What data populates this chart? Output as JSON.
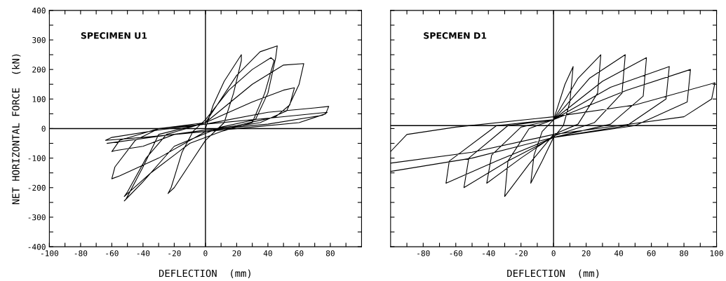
{
  "chart_data": [
    {
      "type": "line",
      "xlabel": "DEFLECTION  (mm)",
      "ylabel": "NET HORIZONTAL FORCE  (kN)",
      "annotations": [
        "SPECIMEN U1"
      ],
      "xlim": [
        -100,
        100
      ],
      "ylim": [
        -400,
        400
      ],
      "xticks": [
        -100,
        {
          "value": -90,
          "label": null
        },
        -80,
        {
          "value": -70,
          "label": null
        },
        -60,
        {
          "value": -50,
          "label": null
        },
        -40,
        {
          "value": -30,
          "label": null
        },
        -20,
        {
          "value": -10,
          "label": null
        },
        0,
        {
          "value": 10,
          "label": null
        },
        20,
        {
          "value": 30,
          "label": null
        },
        40,
        {
          "value": 50,
          "label": null
        },
        60,
        {
          "value": 70,
          "label": null
        },
        80,
        {
          "value": 90,
          "label": null
        }
      ],
      "yticks": [
        -400,
        {
          "value": -350,
          "label": null
        },
        -300,
        {
          "value": -250,
          "label": null
        },
        -200,
        {
          "value": -150,
          "label": null
        },
        -100,
        {
          "value": -50,
          "label": null
        },
        0,
        {
          "value": 50,
          "label": null
        },
        100,
        {
          "value": 150,
          "label": null
        },
        200,
        {
          "value": 250,
          "label": null
        },
        300,
        {
          "value": 350,
          "label": null
        },
        400
      ],
      "ref_lines": [
        {
          "axis": "y",
          "value": 0,
          "color": "#000000"
        },
        {
          "axis": "x",
          "value": 0,
          "color": "#000000"
        }
      ],
      "grid": false,
      "marker": "none",
      "line_style": "solid",
      "series": [
        {
          "color": "#000000",
          "x": [
            0,
            5,
            12,
            23,
            23,
            18,
            12,
            0,
            -10,
            -20,
            -24,
            -22,
            -15,
            -8,
            0,
            15,
            30,
            42,
            44,
            38,
            30,
            10,
            -10,
            -35,
            -52,
            -50,
            -38,
            -25,
            0,
            20,
            35,
            46,
            45,
            40,
            32,
            10,
            -20,
            -40,
            -52,
            -51,
            -40,
            -30,
            0,
            30,
            50,
            63,
            60,
            52,
            35,
            0,
            -30,
            -55,
            -60,
            -58,
            -45,
            -30,
            0,
            30,
            50,
            57,
            54,
            45,
            20,
            -20,
            -40,
            -58,
            -60,
            -55,
            -30,
            0,
            40,
            70,
            79,
            77,
            60,
            30,
            0,
            -40,
            -64,
            -60,
            -30,
            0,
            40,
            78,
            75,
            40,
            0,
            -63
          ],
          "values": [
            0,
            80,
            160,
            250,
            230,
            120,
            20,
            -40,
            -120,
            -200,
            -220,
            -200,
            -80,
            -10,
            30,
            130,
            200,
            240,
            230,
            120,
            20,
            -10,
            -50,
            -150,
            -230,
            -215,
            -100,
            -20,
            20,
            180,
            260,
            280,
            240,
            120,
            30,
            5,
            -60,
            -180,
            -245,
            -240,
            -130,
            -20,
            20,
            150,
            215,
            220,
            150,
            60,
            20,
            -10,
            -100,
            -160,
            -170,
            -130,
            -40,
            0,
            20,
            90,
            130,
            138,
            80,
            40,
            10,
            -20,
            -60,
            -75,
            -78,
            -40,
            0,
            15,
            55,
            70,
            75,
            50,
            20,
            5,
            -10,
            -30,
            -40,
            -30,
            -5,
            15,
            35,
            55,
            45,
            15,
            -5,
            -50
          ]
        }
      ]
    },
    {
      "type": "line",
      "xlabel": "DEFLECTION  (mm)",
      "annotations": [
        "SPECMEN D1"
      ],
      "tick_labels": "x",
      "xlim": [
        -100,
        100
      ],
      "ylim": [
        -400,
        400
      ],
      "xticks": [
        {
          "value": -90,
          "label": null
        },
        -80,
        {
          "value": -70,
          "label": null
        },
        -60,
        {
          "value": -50,
          "label": null
        },
        -40,
        {
          "value": -30,
          "label": null
        },
        -20,
        {
          "value": -10,
          "label": null
        },
        0,
        {
          "value": 10,
          "label": null
        },
        20,
        {
          "value": 30,
          "label": null
        },
        40,
        {
          "value": 50,
          "label": null
        },
        60,
        {
          "value": 70,
          "label": null
        },
        80,
        {
          "value": 90,
          "label": null
        },
        100
      ],
      "yticks": [
        -400,
        {
          "value": -350,
          "label": null
        },
        -300,
        {
          "value": -250,
          "label": null
        },
        -200,
        {
          "value": -150,
          "label": null
        },
        -100,
        {
          "value": -50,
          "label": null
        },
        0,
        {
          "value": 50,
          "label": null
        },
        100,
        {
          "value": 150,
          "label": null
        },
        200,
        {
          "value": 250,
          "label": null
        },
        300,
        {
          "value": 350,
          "label": null
        },
        400
      ],
      "ref_lines": [
        {
          "axis": "y",
          "value": 10,
          "color": "#000000"
        },
        {
          "axis": "x",
          "value": 0,
          "color": "#000000"
        }
      ],
      "grid": false,
      "marker": "none",
      "line_style": "solid",
      "series": [
        {
          "color": "#000000",
          "x": [
            0,
            7,
            12,
            10,
            6,
            0,
            -7,
            -14,
            -12,
            -7,
            0,
            15,
            29,
            27,
            15,
            0,
            -15,
            -30,
            -28,
            -15,
            0,
            22,
            44,
            42,
            25,
            0,
            -20,
            -41,
            -38,
            -20,
            0,
            30,
            57,
            55,
            35,
            0,
            -28,
            -55,
            -52,
            -28,
            0,
            35,
            71,
            69,
            45,
            0,
            -35,
            -66,
            -64,
            -35,
            0,
            45,
            84,
            82,
            50,
            0,
            -50,
            -100,
            null,
            -100,
            -90,
            -60,
            0,
            50,
            99,
            97,
            80,
            40,
            0,
            -50,
            -100
          ],
          "values": [
            30,
            150,
            210,
            90,
            10,
            -30,
            -110,
            -185,
            -90,
            -10,
            30,
            170,
            250,
            120,
            15,
            -20,
            -120,
            -230,
            -110,
            0,
            30,
            170,
            250,
            120,
            20,
            -25,
            -100,
            -185,
            -90,
            5,
            30,
            160,
            240,
            110,
            15,
            -30,
            -110,
            -200,
            -100,
            10,
            30,
            140,
            210,
            100,
            10,
            -30,
            -110,
            -185,
            -110,
            10,
            30,
            130,
            200,
            90,
            10,
            -30,
            -100,
            -145,
            null,
            -78,
            -20,
            5,
            40,
            80,
            155,
            100,
            40,
            10,
            -20,
            -80,
            -117
          ]
        }
      ]
    }
  ]
}
